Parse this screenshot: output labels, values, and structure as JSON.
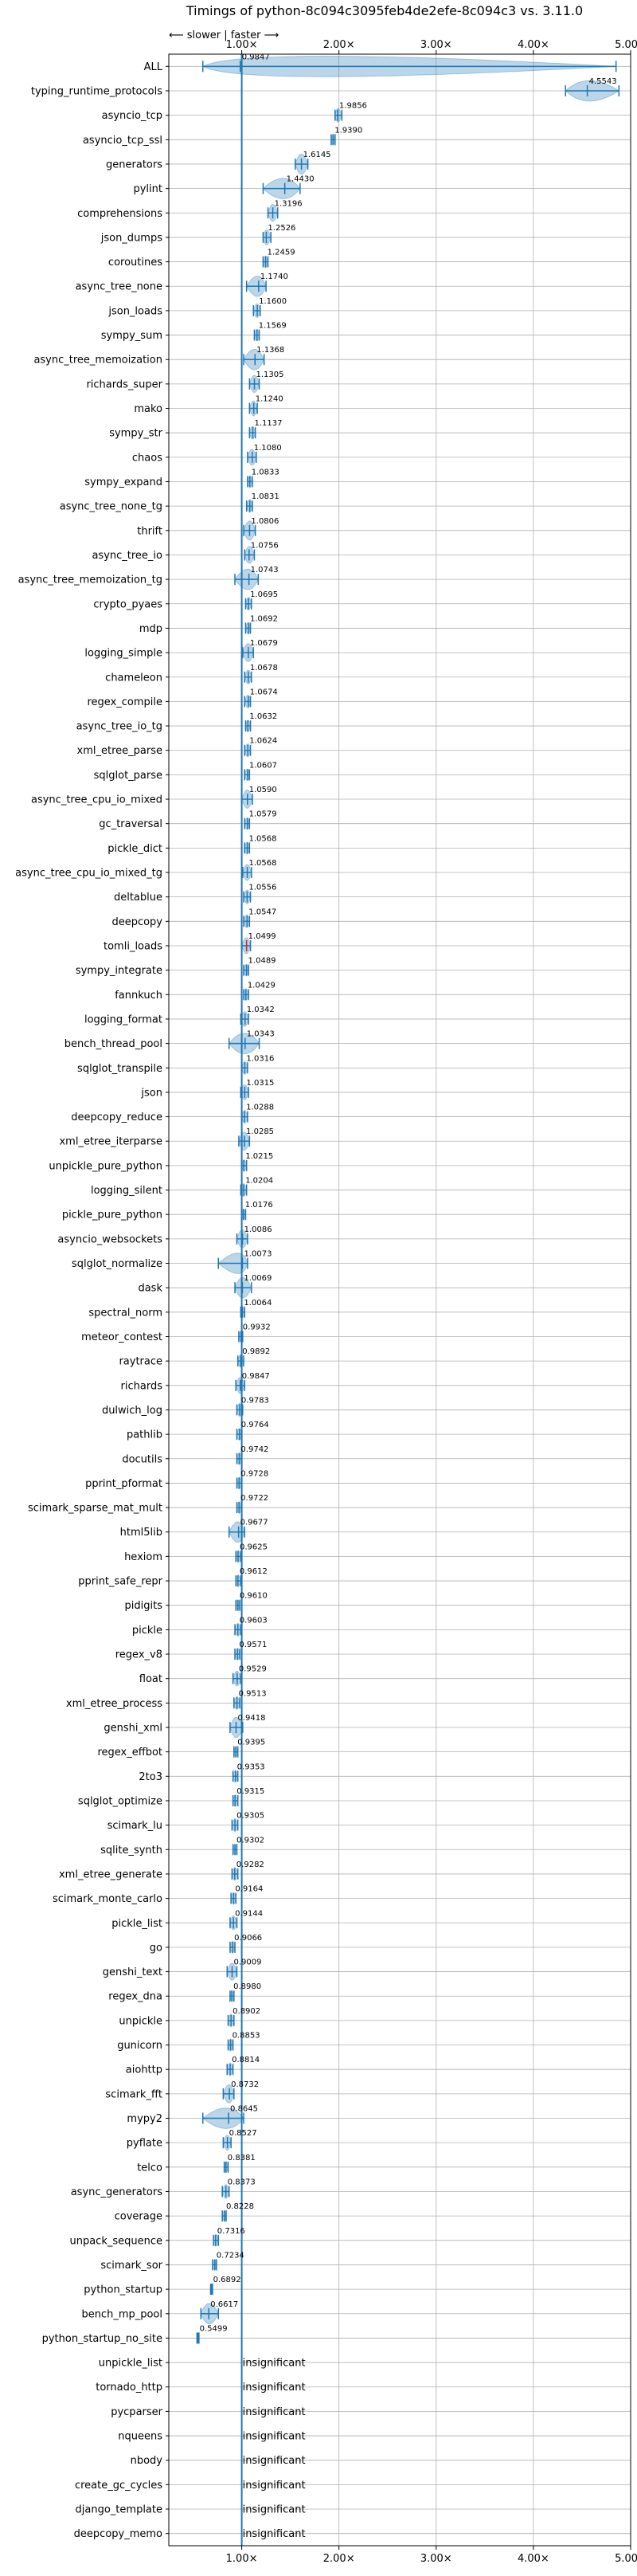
{
  "chart_data": {
    "type": "violin",
    "title": "Timings of python-8c094c3095feb4de2efe-8c094c3 vs. 3.11.0",
    "direction_label": "⟵ slower | faster ⟶",
    "xlim": [
      0.25,
      5.0
    ],
    "x_ticks": [
      {
        "value": 1,
        "label": "1.00×"
      },
      {
        "value": 2,
        "label": "2.00×"
      },
      {
        "value": 3,
        "label": "3.00×"
      },
      {
        "value": 4,
        "label": "4.00×"
      },
      {
        "value": 5,
        "label": "5.00×"
      }
    ],
    "insignificant_label": "insignificant",
    "grid": true,
    "colors": {
      "violin": "#1f77b4",
      "error": "#1f77b4",
      "outlier_marker": "#d62728",
      "grid": "#b0b0b0",
      "reference_line": "#1f77b4"
    },
    "rows": [
      {
        "name": "ALL",
        "value": 0.9847,
        "lo": 0.6,
        "hi": 4.85
      },
      {
        "name": "typing_runtime_protocols",
        "value": 4.5543,
        "lo": 4.33,
        "hi": 4.88
      },
      {
        "name": "asyncio_tcp",
        "value": 1.9856,
        "lo": 1.96,
        "hi": 2.03
      },
      {
        "name": "asyncio_tcp_ssl",
        "value": 1.939,
        "lo": 1.92,
        "hi": 1.96
      },
      {
        "name": "generators",
        "value": 1.6145,
        "lo": 1.55,
        "hi": 1.68
      },
      {
        "name": "pylint",
        "value": 1.443,
        "lo": 1.22,
        "hi": 1.6
      },
      {
        "name": "comprehensions",
        "value": 1.3196,
        "lo": 1.27,
        "hi": 1.37
      },
      {
        "name": "json_dumps",
        "value": 1.2526,
        "lo": 1.22,
        "hi": 1.3
      },
      {
        "name": "coroutines",
        "value": 1.2459,
        "lo": 1.22,
        "hi": 1.27
      },
      {
        "name": "async_tree_none",
        "value": 1.174,
        "lo": 1.05,
        "hi": 1.25
      },
      {
        "name": "json_loads",
        "value": 1.16,
        "lo": 1.12,
        "hi": 1.19
      },
      {
        "name": "sympy_sum",
        "value": 1.1569,
        "lo": 1.13,
        "hi": 1.18
      },
      {
        "name": "async_tree_memoization",
        "value": 1.1368,
        "lo": 1.02,
        "hi": 1.23
      },
      {
        "name": "richards_super",
        "value": 1.1305,
        "lo": 1.08,
        "hi": 1.18
      },
      {
        "name": "mako",
        "value": 1.124,
        "lo": 1.08,
        "hi": 1.16
      },
      {
        "name": "sympy_str",
        "value": 1.1137,
        "lo": 1.08,
        "hi": 1.14
      },
      {
        "name": "chaos",
        "value": 1.108,
        "lo": 1.06,
        "hi": 1.15
      },
      {
        "name": "sympy_expand",
        "value": 1.0833,
        "lo": 1.06,
        "hi": 1.11
      },
      {
        "name": "async_tree_none_tg",
        "value": 1.0831,
        "lo": 1.05,
        "hi": 1.11
      },
      {
        "name": "thrift",
        "value": 1.0806,
        "lo": 1.02,
        "hi": 1.14
      },
      {
        "name": "async_tree_io",
        "value": 1.0756,
        "lo": 1.03,
        "hi": 1.13
      },
      {
        "name": "async_tree_memoization_tg",
        "value": 1.0743,
        "lo": 0.93,
        "hi": 1.17
      },
      {
        "name": "crypto_pyaes",
        "value": 1.0695,
        "lo": 1.04,
        "hi": 1.1
      },
      {
        "name": "mdp",
        "value": 1.0692,
        "lo": 1.04,
        "hi": 1.09
      },
      {
        "name": "logging_simple",
        "value": 1.0679,
        "lo": 1.01,
        "hi": 1.12
      },
      {
        "name": "chameleon",
        "value": 1.0678,
        "lo": 1.03,
        "hi": 1.1
      },
      {
        "name": "regex_compile",
        "value": 1.0674,
        "lo": 1.03,
        "hi": 1.09
      },
      {
        "name": "async_tree_io_tg",
        "value": 1.0632,
        "lo": 1.04,
        "hi": 1.09
      },
      {
        "name": "xml_etree_parse",
        "value": 1.0624,
        "lo": 1.03,
        "hi": 1.09
      },
      {
        "name": "sqlglot_parse",
        "value": 1.0607,
        "lo": 1.03,
        "hi": 1.08
      },
      {
        "name": "async_tree_cpu_io_mixed",
        "value": 1.059,
        "lo": 1.0,
        "hi": 1.11
      },
      {
        "name": "gc_traversal",
        "value": 1.0579,
        "lo": 1.03,
        "hi": 1.08
      },
      {
        "name": "pickle_dict",
        "value": 1.0568,
        "lo": 1.03,
        "hi": 1.08
      },
      {
        "name": "async_tree_cpu_io_mixed_tg",
        "value": 1.0568,
        "lo": 1.01,
        "hi": 1.1
      },
      {
        "name": "deltablue",
        "value": 1.0556,
        "lo": 1.02,
        "hi": 1.09
      },
      {
        "name": "deepcopy",
        "value": 1.0547,
        "lo": 1.02,
        "hi": 1.08
      },
      {
        "name": "tomli_loads",
        "value": 1.0499,
        "lo": 1.0,
        "hi": 1.09,
        "marker": true
      },
      {
        "name": "sympy_integrate",
        "value": 1.0489,
        "lo": 1.02,
        "hi": 1.07
      },
      {
        "name": "fannkuch",
        "value": 1.0429,
        "lo": 1.02,
        "hi": 1.07
      },
      {
        "name": "logging_format",
        "value": 1.0342,
        "lo": 0.99,
        "hi": 1.07
      },
      {
        "name": "bench_thread_pool",
        "value": 1.0343,
        "lo": 0.87,
        "hi": 1.18
      },
      {
        "name": "sqlglot_transpile",
        "value": 1.0316,
        "lo": 1.0,
        "hi": 1.06
      },
      {
        "name": "json",
        "value": 1.0315,
        "lo": 0.99,
        "hi": 1.07
      },
      {
        "name": "deepcopy_reduce",
        "value": 1.0288,
        "lo": 1.0,
        "hi": 1.06
      },
      {
        "name": "xml_etree_iterparse",
        "value": 1.0285,
        "lo": 0.97,
        "hi": 1.08
      },
      {
        "name": "unpickle_pure_python",
        "value": 1.0215,
        "lo": 1.0,
        "hi": 1.05
      },
      {
        "name": "logging_silent",
        "value": 1.0204,
        "lo": 0.99,
        "hi": 1.05
      },
      {
        "name": "pickle_pure_python",
        "value": 1.0176,
        "lo": 1.0,
        "hi": 1.04
      },
      {
        "name": "asyncio_websockets",
        "value": 1.0086,
        "lo": 0.95,
        "hi": 1.06
      },
      {
        "name": "sqlglot_normalize",
        "value": 1.0073,
        "lo": 0.76,
        "hi": 1.06
      },
      {
        "name": "dask",
        "value": 1.0069,
        "lo": 0.93,
        "hi": 1.1
      },
      {
        "name": "spectral_norm",
        "value": 1.0064,
        "lo": 0.99,
        "hi": 1.03
      },
      {
        "name": "meteor_contest",
        "value": 0.9932,
        "lo": 0.97,
        "hi": 1.01
      },
      {
        "name": "raytrace",
        "value": 0.9892,
        "lo": 0.96,
        "hi": 1.02
      },
      {
        "name": "richards",
        "value": 0.9847,
        "lo": 0.94,
        "hi": 1.03
      },
      {
        "name": "dulwich_log",
        "value": 0.9783,
        "lo": 0.95,
        "hi": 1.01
      },
      {
        "name": "pathlib",
        "value": 0.9764,
        "lo": 0.95,
        "hi": 1.0
      },
      {
        "name": "docutils",
        "value": 0.9742,
        "lo": 0.95,
        "hi": 1.0
      },
      {
        "name": "pprint_pformat",
        "value": 0.9728,
        "lo": 0.95,
        "hi": 1.0
      },
      {
        "name": "scimark_sparse_mat_mult",
        "value": 0.9722,
        "lo": 0.95,
        "hi": 1.0
      },
      {
        "name": "html5lib",
        "value": 0.9677,
        "lo": 0.87,
        "hi": 1.03
      },
      {
        "name": "hexiom",
        "value": 0.9625,
        "lo": 0.94,
        "hi": 0.99
      },
      {
        "name": "pprint_safe_repr",
        "value": 0.9612,
        "lo": 0.94,
        "hi": 0.99
      },
      {
        "name": "pidigits",
        "value": 0.961,
        "lo": 0.94,
        "hi": 0.98
      },
      {
        "name": "pickle",
        "value": 0.9603,
        "lo": 0.93,
        "hi": 0.99
      },
      {
        "name": "regex_v8",
        "value": 0.9571,
        "lo": 0.93,
        "hi": 0.98
      },
      {
        "name": "float",
        "value": 0.9529,
        "lo": 0.91,
        "hi": 0.99
      },
      {
        "name": "xml_etree_process",
        "value": 0.9513,
        "lo": 0.92,
        "hi": 0.98
      },
      {
        "name": "genshi_xml",
        "value": 0.9418,
        "lo": 0.88,
        "hi": 1.01
      },
      {
        "name": "regex_effbot",
        "value": 0.9395,
        "lo": 0.92,
        "hi": 0.96
      },
      {
        "name": "2to3",
        "value": 0.9353,
        "lo": 0.91,
        "hi": 0.96
      },
      {
        "name": "sqlglot_optimize",
        "value": 0.9315,
        "lo": 0.91,
        "hi": 0.96
      },
      {
        "name": "scimark_lu",
        "value": 0.9305,
        "lo": 0.9,
        "hi": 0.96
      },
      {
        "name": "sqlite_synth",
        "value": 0.9302,
        "lo": 0.91,
        "hi": 0.95
      },
      {
        "name": "xml_etree_generate",
        "value": 0.9282,
        "lo": 0.9,
        "hi": 0.96
      },
      {
        "name": "scimark_monte_carlo",
        "value": 0.9164,
        "lo": 0.89,
        "hi": 0.94
      },
      {
        "name": "pickle_list",
        "value": 0.9144,
        "lo": 0.88,
        "hi": 0.95
      },
      {
        "name": "go",
        "value": 0.9066,
        "lo": 0.88,
        "hi": 0.93
      },
      {
        "name": "genshi_text",
        "value": 0.9009,
        "lo": 0.85,
        "hi": 0.95
      },
      {
        "name": "regex_dna",
        "value": 0.898,
        "lo": 0.88,
        "hi": 0.92
      },
      {
        "name": "unpickle",
        "value": 0.8902,
        "lo": 0.86,
        "hi": 0.92
      },
      {
        "name": "gunicorn",
        "value": 0.8853,
        "lo": 0.86,
        "hi": 0.91
      },
      {
        "name": "aiohttp",
        "value": 0.8814,
        "lo": 0.85,
        "hi": 0.91
      },
      {
        "name": "scimark_fft",
        "value": 0.8732,
        "lo": 0.81,
        "hi": 0.92
      },
      {
        "name": "mypy2",
        "value": 0.8645,
        "lo": 0.6,
        "hi": 1.02
      },
      {
        "name": "pyflate",
        "value": 0.8527,
        "lo": 0.81,
        "hi": 0.89
      },
      {
        "name": "telco",
        "value": 0.8381,
        "lo": 0.82,
        "hi": 0.86
      },
      {
        "name": "async_generators",
        "value": 0.8373,
        "lo": 0.8,
        "hi": 0.87
      },
      {
        "name": "coverage",
        "value": 0.8228,
        "lo": 0.8,
        "hi": 0.84
      },
      {
        "name": "unpack_sequence",
        "value": 0.7316,
        "lo": 0.71,
        "hi": 0.76
      },
      {
        "name": "scimark_sor",
        "value": 0.7234,
        "lo": 0.7,
        "hi": 0.74
      },
      {
        "name": "python_startup",
        "value": 0.6892,
        "lo": 0.68,
        "hi": 0.7
      },
      {
        "name": "bench_mp_pool",
        "value": 0.6617,
        "lo": 0.58,
        "hi": 0.76
      },
      {
        "name": "python_startup_no_site",
        "value": 0.5499,
        "lo": 0.54,
        "hi": 0.56
      },
      {
        "name": "unpickle_list",
        "value": null
      },
      {
        "name": "tornado_http",
        "value": null
      },
      {
        "name": "pycparser",
        "value": null
      },
      {
        "name": "nqueens",
        "value": null
      },
      {
        "name": "nbody",
        "value": null
      },
      {
        "name": "create_gc_cycles",
        "value": null
      },
      {
        "name": "django_template",
        "value": null
      },
      {
        "name": "deepcopy_memo",
        "value": null
      }
    ]
  }
}
